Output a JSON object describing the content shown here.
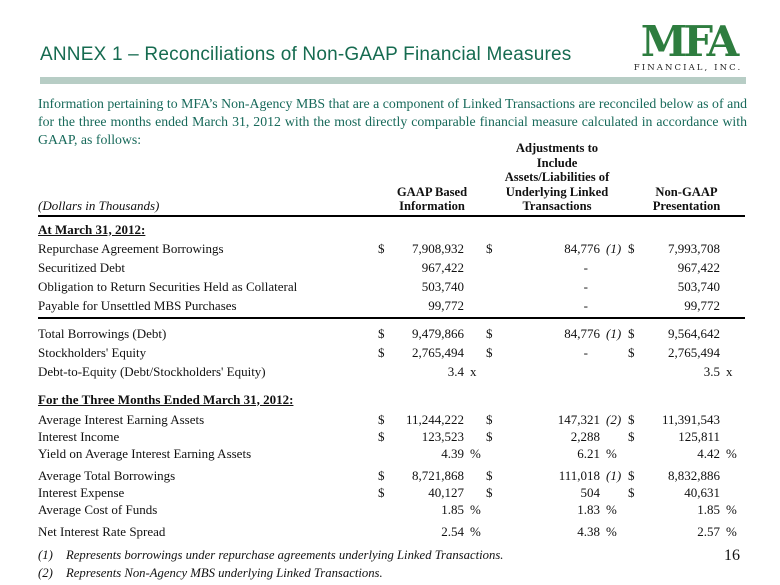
{
  "header": {
    "title": "ANNEX 1 – Reconciliations of Non-GAAP Financial Measures",
    "title_color": "#166b50",
    "divider_color": "#b7cdc5",
    "logo": {
      "text": "MFA",
      "subtext": "FINANCIAL, INC.",
      "color": "#2e7d3f"
    }
  },
  "intro": {
    "text": "Information pertaining to MFA’s Non-Agency MBS that are a component of Linked Transactions are reconciled below as of and for the three months ended March 31, 2012 with the most directly comparable financial measure calculated in accordance with GAAP, as follows:"
  },
  "table": {
    "units_label": "(Dollars in Thousands)",
    "columns": {
      "gaap": "GAAP Based\nInformation",
      "adjustments": "Adjustments to\nInclude\nAssets/Liabilities of\nUnderlying Linked\nTransactions",
      "non_gaap": "Non-GAAP\nPresentation"
    },
    "sections": [
      {
        "heading": "At March 31, 2012:",
        "rows": [
          {
            "label": "Repurchase Agreement Borrowings",
            "cells": [
              [
                "$",
                "7,908,932",
                ""
              ],
              [
                "$",
                "84,776",
                "(1)"
              ],
              [
                "$",
                "7,993,708",
                ""
              ]
            ]
          },
          {
            "label": "Securitized Debt",
            "cells": [
              [
                "",
                "967,422",
                ""
              ],
              [
                "",
                "-",
                ""
              ],
              [
                "",
                "967,422",
                ""
              ]
            ]
          },
          {
            "label": "Obligation to Return Securities Held as Collateral",
            "cells": [
              [
                "",
                "503,740",
                ""
              ],
              [
                "",
                "-",
                ""
              ],
              [
                "",
                "503,740",
                ""
              ]
            ]
          },
          {
            "label": "Payable for Unsettled MBS Purchases",
            "cells": [
              [
                "",
                "99,772",
                ""
              ],
              [
                "",
                "-",
                ""
              ],
              [
                "",
                "99,772",
                ""
              ]
            ],
            "rule_below": true
          },
          {
            "label": "Total Borrowings (Debt)",
            "cells": [
              [
                "$",
                "9,479,866",
                ""
              ],
              [
                "$",
                "84,776",
                "(1)"
              ],
              [
                "$",
                "9,564,642",
                ""
              ]
            ],
            "gap_above": true
          },
          {
            "label": "Stockholders' Equity",
            "cells": [
              [
                "$",
                "2,765,494",
                ""
              ],
              [
                "$",
                "-",
                ""
              ],
              [
                "$",
                "2,765,494",
                ""
              ]
            ]
          },
          {
            "label": "Debt-to-Equity (Debt/Stockholders' Equity)",
            "cells": [
              [
                "",
                "3.4",
                "x"
              ],
              [
                "",
                "",
                ""
              ],
              [
                "",
                "3.5",
                "x"
              ]
            ]
          }
        ]
      },
      {
        "heading": "For the Three Months Ended March 31, 2012:",
        "rows": [
          {
            "label": "Average Interest Earning Assets",
            "cells": [
              [
                "$",
                "11,244,222",
                ""
              ],
              [
                "$",
                "147,321",
                "(2)"
              ],
              [
                "$",
                "11,391,543",
                ""
              ]
            ]
          },
          {
            "label": "Interest Income",
            "cells": [
              [
                "$",
                "123,523",
                ""
              ],
              [
                "$",
                "2,288",
                ""
              ],
              [
                "$",
                "125,811",
                ""
              ]
            ]
          },
          {
            "label": "Yield on Average Interest Earning Assets",
            "cells": [
              [
                "",
                "4.39",
                "%"
              ],
              [
                "",
                "6.21",
                "%"
              ],
              [
                "",
                "4.42",
                "%"
              ]
            ]
          },
          {
            "label": "Average Total Borrowings",
            "cells": [
              [
                "$",
                "8,721,868",
                ""
              ],
              [
                "$",
                "111,018",
                "(1)"
              ],
              [
                "$",
                "8,832,886",
                ""
              ]
            ],
            "gap_above": true
          },
          {
            "label": "Interest Expense",
            "cells": [
              [
                "$",
                "40,127",
                ""
              ],
              [
                "$",
                "504",
                ""
              ],
              [
                "$",
                "40,631",
                ""
              ]
            ]
          },
          {
            "label": "Average Cost of Funds",
            "cells": [
              [
                "",
                "1.85",
                "%"
              ],
              [
                "",
                "1.83",
                "%"
              ],
              [
                "",
                "1.85",
                "%"
              ]
            ]
          },
          {
            "label": "Net Interest Rate Spread",
            "cells": [
              [
                "",
                "2.54",
                "%"
              ],
              [
                "",
                "4.38",
                "%"
              ],
              [
                "",
                "2.57",
                "%"
              ]
            ],
            "gap_above": true
          }
        ]
      }
    ]
  },
  "footnotes": [
    {
      "ref": "(1)",
      "text": "Represents borrowings under repurchase agreements underlying Linked Transactions."
    },
    {
      "ref": "(2)",
      "text": "Represents Non-Agency MBS underlying Linked Transactions."
    }
  ],
  "page": {
    "number": "16"
  }
}
